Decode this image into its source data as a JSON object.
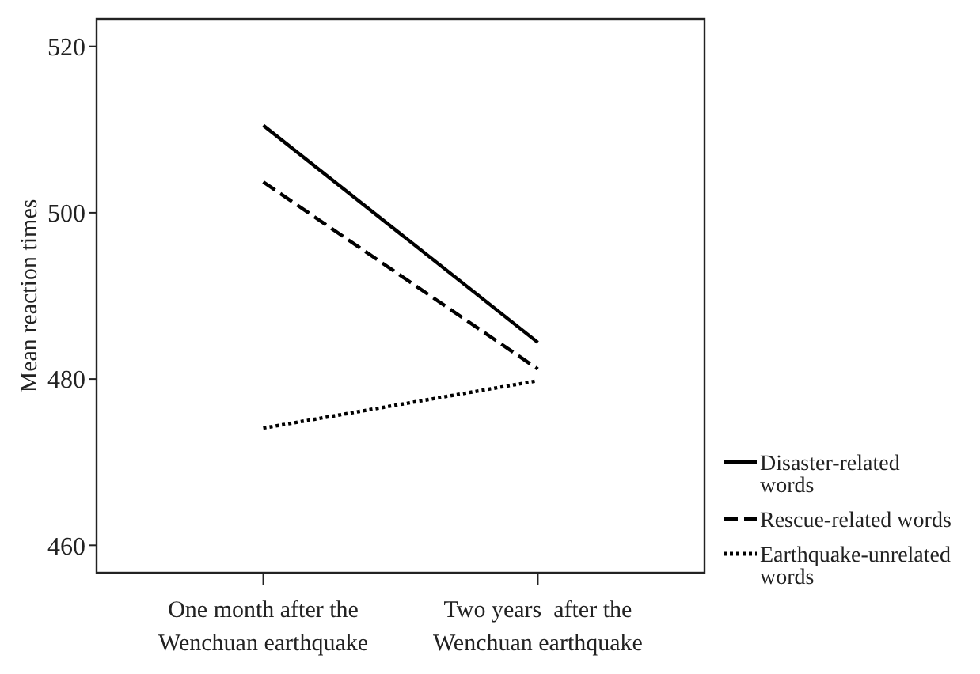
{
  "chart_data": {
    "type": "line",
    "ylabel": "Mean reaction times",
    "categories": [
      "One month after the Wenchuan earthquake",
      "Two years  after the Wenchuan earthquake"
    ],
    "series": [
      {
        "name": "Disaster-related words",
        "color": "#000000",
        "line_style": "solid",
        "values": [
          510.5,
          484.4
        ]
      },
      {
        "name": "Rescue-related words",
        "color": "#000000",
        "line_style": "dashed",
        "values": [
          503.7,
          481.2
        ]
      },
      {
        "name": "Earthquake-unrelated words",
        "color": "#000000",
        "line_style": "dotted",
        "values": [
          474.1,
          479.8
        ]
      }
    ],
    "ylim": [
      456.7,
      523.3
    ],
    "yticks": [
      460,
      480,
      500,
      520
    ],
    "grid": false,
    "legend": "right",
    "marker": "none"
  }
}
